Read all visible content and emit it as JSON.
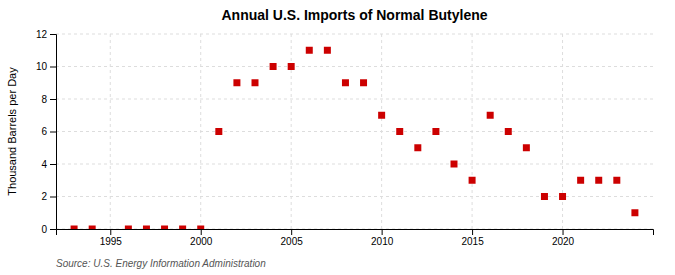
{
  "chart_data": {
    "type": "scatter",
    "title": "Annual U.S. Imports of Normal Butylene",
    "ylabel": "Thousand Barrels per Day",
    "annotations": [
      "Source: U.S. Energy Information Administration"
    ],
    "x": [
      1993,
      1994,
      1996,
      1997,
      1998,
      1999,
      2000,
      2001,
      2002,
      2003,
      2004,
      2005,
      2006,
      2007,
      2008,
      2009,
      2010,
      2011,
      2012,
      2013,
      2014,
      2015,
      2016,
      2017,
      2018,
      2019,
      2020,
      2021,
      2022,
      2023,
      2024
    ],
    "values": [
      0,
      0,
      0,
      0,
      0,
      0,
      0,
      6,
      9,
      9,
      10,
      10,
      11,
      11,
      9,
      9,
      7,
      6,
      5,
      6,
      4,
      3,
      7,
      6,
      5,
      2,
      2,
      3,
      3,
      3,
      1
    ],
    "color": "#cc0000",
    "marker": "square",
    "xlim": [
      1992,
      2025
    ],
    "xticks": [
      1995,
      2000,
      2005,
      2010,
      2015,
      2020
    ],
    "ylim": [
      0,
      12
    ],
    "yticks": [
      0,
      2,
      4,
      6,
      8,
      10,
      12
    ],
    "grid": true
  }
}
